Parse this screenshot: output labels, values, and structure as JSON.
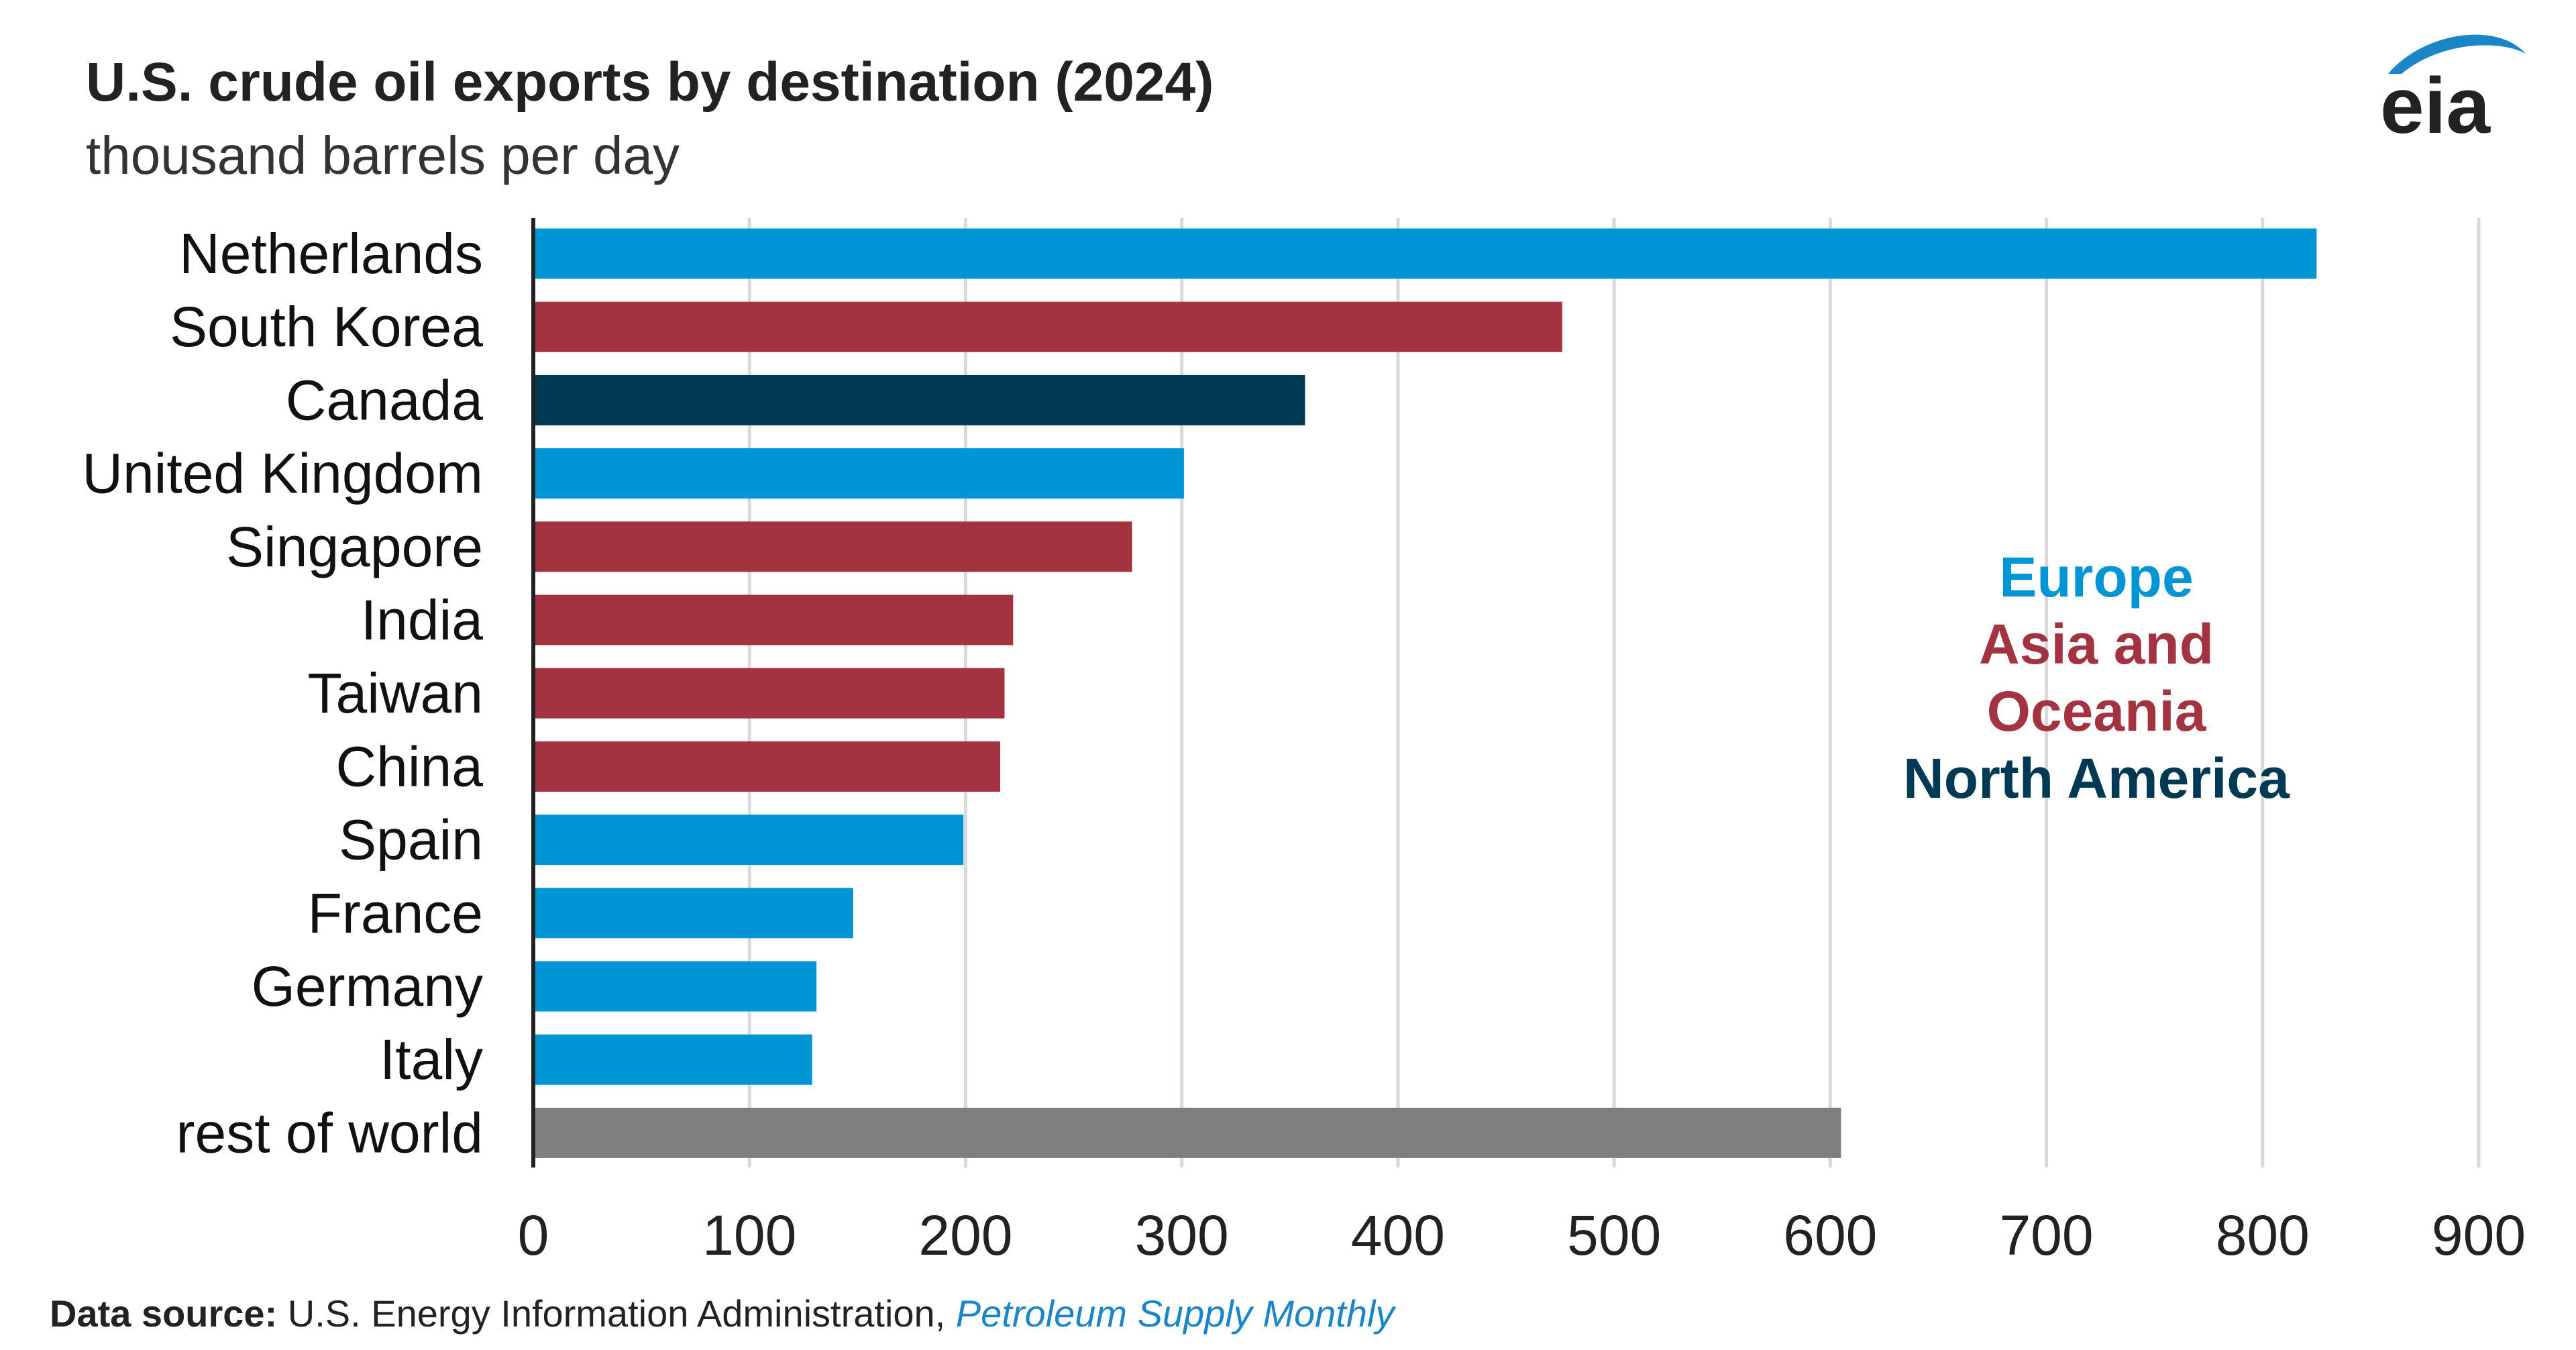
{
  "title": "U.S. crude oil exports by destination (2024)",
  "subtitle": "thousand barrels per day",
  "logo_text": "eia",
  "colors": {
    "Europe": "#0096d6",
    "Asia and Oceania": "#a33340",
    "North America": "#003953",
    "Other": "#7f7f7f",
    "grid": "#d9d9d9",
    "axis": "#222222"
  },
  "legend": [
    {
      "label": "Europe",
      "color": "#0096d6"
    },
    {
      "label": "Asia and Oceania",
      "color": "#a33340"
    },
    {
      "label": "North America",
      "color": "#003953"
    }
  ],
  "source": {
    "label": "Data source:",
    "text": " U.S. Energy Information Administration, ",
    "publication": "Petroleum Supply Monthly"
  },
  "chart_data": {
    "type": "bar",
    "orientation": "horizontal",
    "title": "U.S. crude oil exports by destination (2024)",
    "ylabel": "",
    "xlabel": "thousand barrels per day",
    "xlim": [
      0,
      900
    ],
    "xticks": [
      0,
      100,
      200,
      300,
      400,
      500,
      600,
      700,
      800,
      900
    ],
    "grid": true,
    "categories": [
      "Netherlands",
      "South Korea",
      "Canada",
      "United Kingdom",
      "Singapore",
      "India",
      "Taiwan",
      "China",
      "Spain",
      "France",
      "Germany",
      "Italy",
      "rest of world"
    ],
    "values": [
      825,
      476,
      357,
      301,
      277,
      222,
      218,
      216,
      199,
      148,
      131,
      129,
      605
    ],
    "regions": [
      "Europe",
      "Asia and Oceania",
      "North America",
      "Europe",
      "Asia and Oceania",
      "Asia and Oceania",
      "Asia and Oceania",
      "Asia and Oceania",
      "Europe",
      "Europe",
      "Europe",
      "Europe",
      "Other"
    ]
  }
}
